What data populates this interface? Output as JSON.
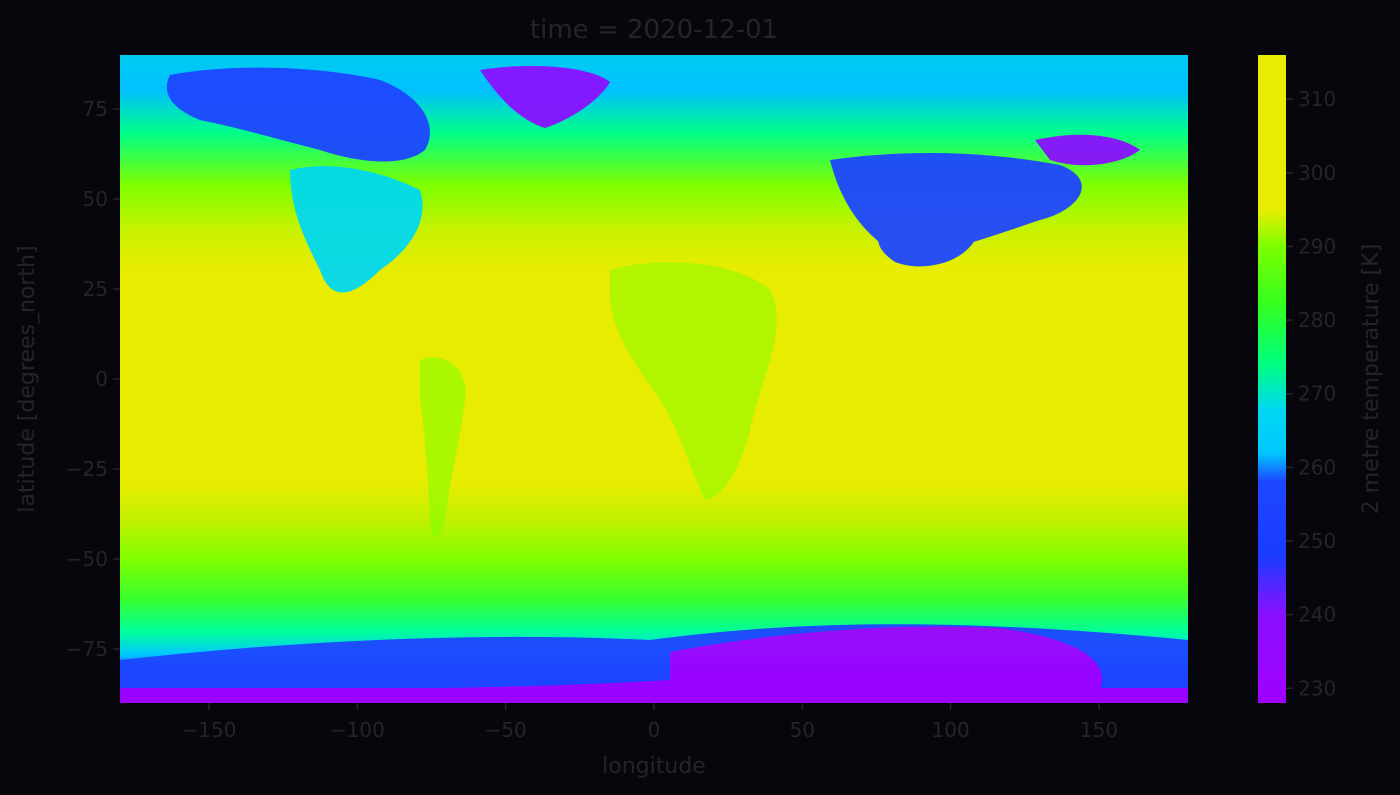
{
  "chart_data": {
    "type": "heatmap",
    "title": "time = 2020-12-01",
    "xlabel": "longitude",
    "ylabel": "latitude [degrees_north]",
    "xlim": [
      -180,
      180
    ],
    "ylim": [
      -90,
      90
    ],
    "xticks": [
      -150,
      -100,
      -50,
      0,
      50,
      100,
      150
    ],
    "xtick_labels": [
      "−150",
      "−100",
      "−50",
      "0",
      "50",
      "100",
      "150"
    ],
    "yticks": [
      75,
      50,
      25,
      0,
      -25,
      -50,
      -75
    ],
    "ytick_labels": [
      "75",
      "50",
      "25",
      "0",
      "−25",
      "−50",
      "−75"
    ],
    "colorbar": {
      "label": "2 metre temperature [K]",
      "range": [
        228,
        316
      ],
      "ticks": [
        310,
        300,
        290,
        280,
        270,
        260,
        250,
        240,
        230
      ],
      "tick_labels": [
        "310",
        "300",
        "290",
        "280",
        "270",
        "260",
        "250",
        "240",
        "230"
      ],
      "colormap": "gist_rainbow_r",
      "stops": [
        {
          "value": 228,
          "color": "#a000ff"
        },
        {
          "value": 240,
          "color": "#8a10ff"
        },
        {
          "value": 248,
          "color": "#1a3cff"
        },
        {
          "value": 258,
          "color": "#1e46ff"
        },
        {
          "value": 262,
          "color": "#00c8ff"
        },
        {
          "value": 268,
          "color": "#00d8f0"
        },
        {
          "value": 274,
          "color": "#00ff80"
        },
        {
          "value": 282,
          "color": "#32ff20"
        },
        {
          "value": 290,
          "color": "#7dff00"
        },
        {
          "value": 295,
          "color": "#e8ec00"
        },
        {
          "value": 316,
          "color": "#e8ec00"
        }
      ]
    },
    "background_color": "#07060d",
    "grid": false
  }
}
